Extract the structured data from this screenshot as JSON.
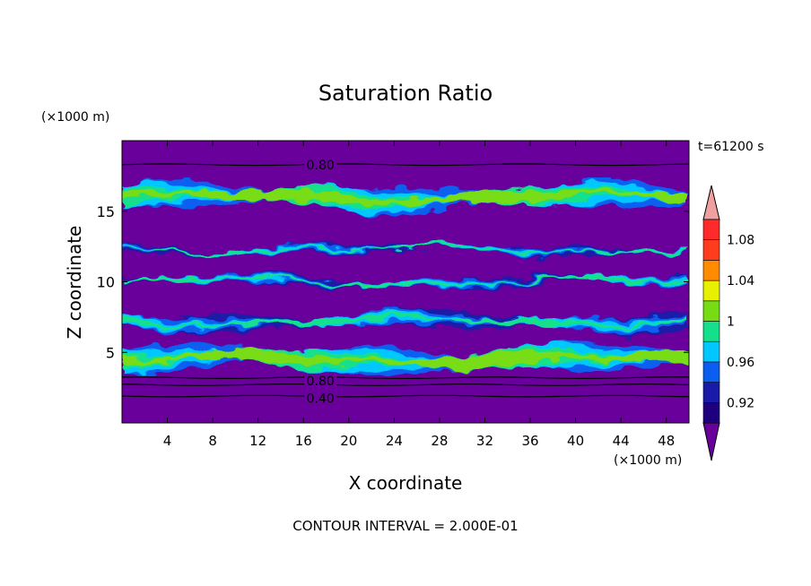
{
  "chart_data": {
    "type": "heatmap",
    "title": "Saturation Ratio",
    "xlabel": "X coordinate",
    "ylabel": "Z coordinate",
    "x_unit_label": "(×1000 m)",
    "y_unit_label": "(×1000 m)",
    "time_label": "t=61200 s",
    "footer": "CONTOUR INTERVAL = 2.000E-01",
    "xlim": [
      0,
      50
    ],
    "ylim": [
      0,
      20
    ],
    "x_ticks": [
      4,
      8,
      12,
      16,
      20,
      24,
      28,
      32,
      36,
      40,
      44,
      48
    ],
    "x_tick_labels": [
      "4",
      "8",
      "12",
      "16",
      "20",
      "24",
      "28",
      "32",
      "36",
      "40",
      "44",
      "48"
    ],
    "y_ticks": [
      5,
      10,
      15
    ],
    "y_tick_labels": [
      "5",
      "10",
      "15"
    ],
    "colorbar": {
      "levels": [
        0.9,
        0.92,
        0.94,
        0.96,
        0.98,
        1.0,
        1.02,
        1.04,
        1.06,
        1.08,
        1.1
      ],
      "tick_values": [
        0.92,
        0.96,
        1.0,
        1.04,
        1.08
      ],
      "tick_labels": [
        "0.92",
        "0.96",
        "1",
        "1.04",
        "1.08"
      ],
      "colors": [
        "#1e007e",
        "#1a1aa8",
        "#0a5ef0",
        "#00c8ff",
        "#14e08c",
        "#78dc14",
        "#e6f000",
        "#ff8c00",
        "#ff3c1e",
        "#ff2a2a"
      ],
      "under_color": "#6a009c",
      "over_color": "#f0a0a0"
    },
    "contour_labels": [
      {
        "x": 17.5,
        "z": 18.3,
        "text": "0.80"
      },
      {
        "x": 17.5,
        "z": 3.0,
        "text": "0.80"
      },
      {
        "x": 17.5,
        "z": 1.75,
        "text": "0.40"
      }
    ],
    "contour_lines_z": [
      18.3,
      3.2,
      2.7,
      1.9
    ],
    "bands": [
      {
        "z_center": 16.0,
        "thickness": 1.8,
        "level": "moist-upper"
      },
      {
        "z_center": 12.3,
        "thickness": 0.6,
        "level": "patchy"
      },
      {
        "z_center": 10.0,
        "thickness": 0.7,
        "level": "patchy"
      },
      {
        "z_center": 7.2,
        "thickness": 1.2,
        "level": "patchy"
      },
      {
        "z_center": 4.5,
        "thickness": 1.9,
        "level": "moist-lower"
      }
    ]
  }
}
